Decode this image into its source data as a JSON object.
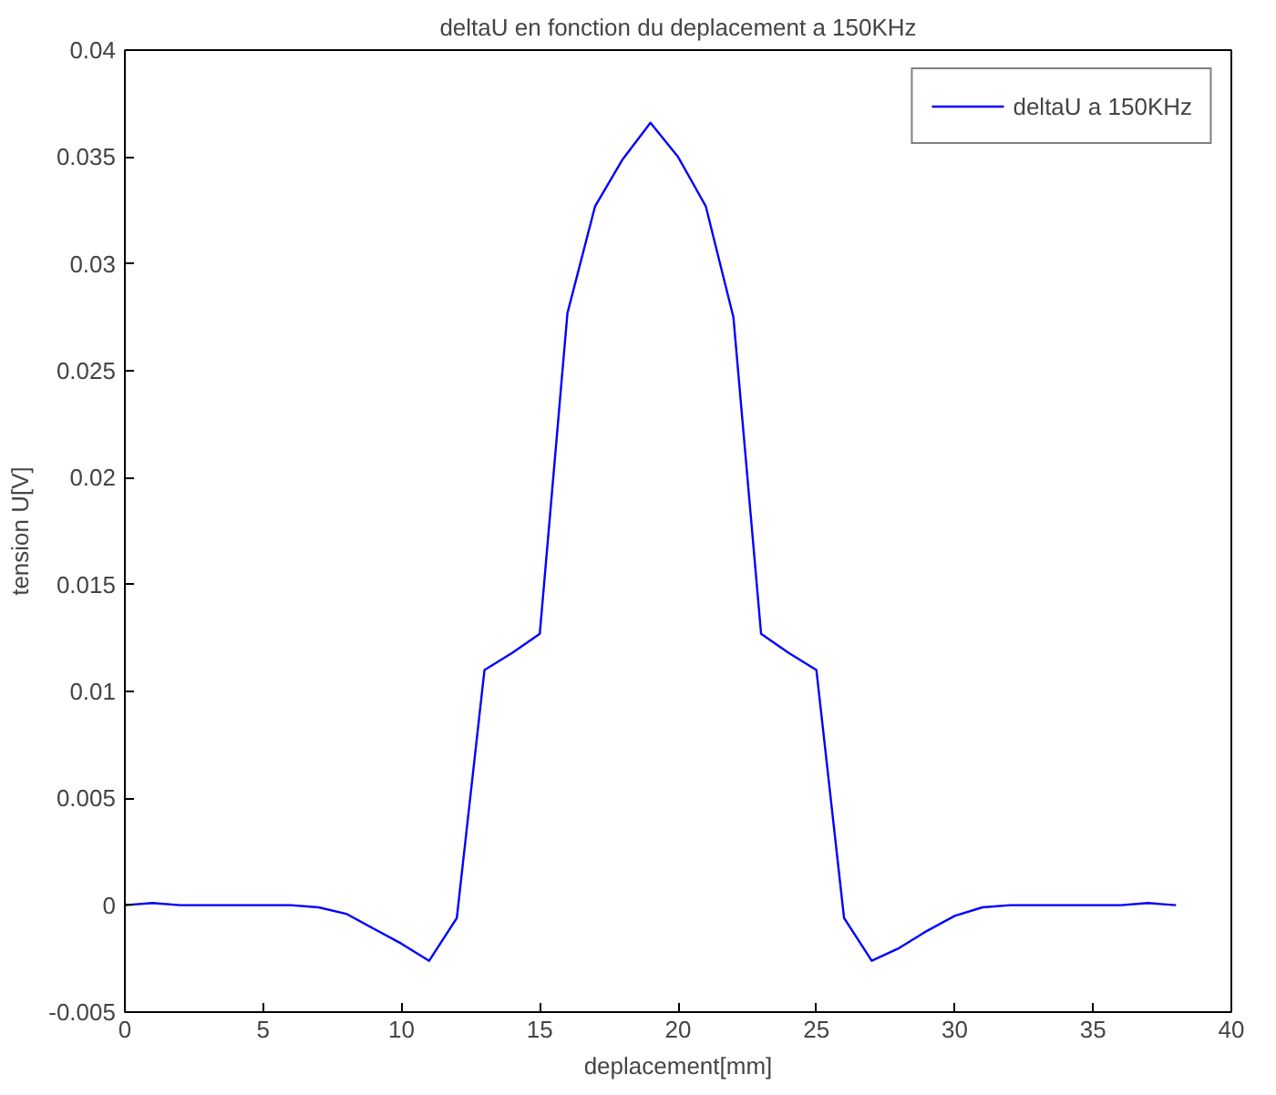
{
  "chart_data": {
    "type": "line",
    "title": "deltaU en fonction du deplacement a 150KHz",
    "xlabel": "deplacement[mm]",
    "ylabel": "tension U[V]",
    "x": [
      0,
      1,
      2,
      3,
      4,
      5,
      6,
      7,
      8,
      9,
      10,
      11,
      12,
      13,
      14,
      15,
      16,
      17,
      18,
      19,
      20,
      21,
      22,
      23,
      24,
      25,
      26,
      27,
      28,
      29,
      30,
      31,
      32,
      33,
      34,
      35,
      36,
      37,
      38
    ],
    "series": [
      {
        "name": "deltaU a 150KHz",
        "color": "#0000ff",
        "values": [
          0.0,
          0.0001,
          0.0,
          0.0,
          0.0,
          0.0,
          0.0,
          -0.0001,
          -0.0004,
          -0.0011,
          -0.0018,
          -0.0026,
          -0.0006,
          0.011,
          0.0118,
          0.0127,
          0.0277,
          0.0327,
          0.0349,
          0.0366,
          0.035,
          0.0327,
          0.0275,
          0.0127,
          0.0118,
          0.011,
          -0.0006,
          -0.0026,
          -0.002,
          -0.0012,
          -0.0005,
          -0.0001,
          0.0,
          0.0,
          0.0,
          0.0,
          0.0,
          0.0001,
          0.0
        ]
      }
    ],
    "xlim": [
      0,
      40
    ],
    "ylim": [
      -0.005,
      0.04
    ],
    "xticks": [
      0,
      5,
      10,
      15,
      20,
      25,
      30,
      35,
      40
    ],
    "yticks": [
      -0.005,
      0,
      0.005,
      0.01,
      0.015,
      0.02,
      0.025,
      0.03,
      0.035,
      0.04
    ],
    "legend": "top right",
    "grid": false,
    "line_style": "solid",
    "marker": "none"
  }
}
